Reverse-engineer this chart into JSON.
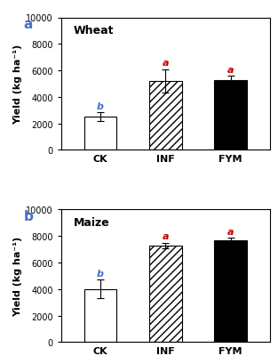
{
  "panels": [
    {
      "label": "a",
      "title": "Wheat",
      "categories": [
        "CK",
        "INF",
        "FYM"
      ],
      "values": [
        2500,
        5200,
        5250
      ],
      "errors": [
        350,
        900,
        350
      ],
      "sig_labels": [
        "b",
        "a",
        "a"
      ],
      "ylim": [
        0,
        10000
      ],
      "yticks": [
        0,
        2000,
        4000,
        6000,
        8000,
        10000
      ],
      "ylabel": "Yield (kg ha⁻¹)"
    },
    {
      "label": "b",
      "title": "Maize",
      "categories": [
        "CK",
        "INF",
        "FYM"
      ],
      "values": [
        4000,
        7300,
        7700
      ],
      "errors": [
        700,
        200,
        200
      ],
      "sig_labels": [
        "b",
        "a",
        "a"
      ],
      "ylim": [
        0,
        10000
      ],
      "yticks": [
        0,
        2000,
        4000,
        6000,
        8000,
        10000
      ],
      "ylabel": "Yield (kg ha⁻¹)"
    }
  ],
  "bar_colors": [
    "white",
    "white",
    "black"
  ],
  "bar_edgecolor": "black",
  "sig_label_color_b": "#4472c4",
  "sig_label_color_a": "#c00000",
  "hatch_pattern": "////",
  "panel_label_color": "#4472c4",
  "title_fontsize": 9,
  "axis_fontsize": 8,
  "tick_fontsize": 7,
  "sig_fontsize": 8,
  "panel_label_fontsize": 11,
  "bar_width": 0.5
}
